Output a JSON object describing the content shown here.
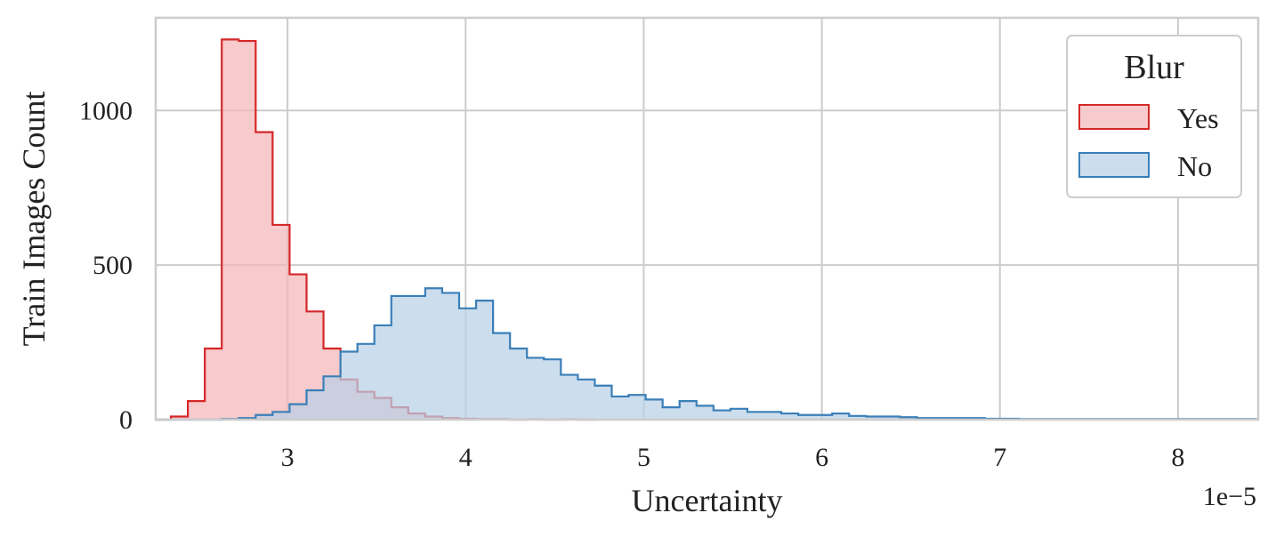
{
  "chart_data": {
    "type": "area",
    "histogram": true,
    "xlabel": "Uncertainty",
    "ylabel": "Train Images Count",
    "x_offset_label": "1e−5",
    "xlim": [
      2.26,
      8.45
    ],
    "ylim": [
      0,
      1300
    ],
    "x_ticks": [
      3,
      4,
      5,
      6,
      7,
      8
    ],
    "y_ticks": [
      0,
      500,
      1000
    ],
    "grid": true,
    "legend": {
      "title": "Blur",
      "position": "top-right",
      "entries": [
        "Yes",
        "No"
      ]
    },
    "bin_start": 2.25,
    "bin_width": 0.0952,
    "series": [
      {
        "name": "Yes",
        "edge_color": "#d62728",
        "fill_color": "#f4b6b8",
        "values": [
          0,
          10,
          60,
          230,
          1230,
          1225,
          930,
          630,
          470,
          350,
          230,
          130,
          90,
          70,
          40,
          20,
          10,
          5,
          3,
          2,
          2,
          0,
          1,
          0,
          1,
          0
        ]
      },
      {
        "name": "No",
        "edge_color": "#3a7fb8",
        "fill_color": "#b9d0e6",
        "values": [
          0,
          0,
          0,
          0,
          2,
          5,
          15,
          25,
          50,
          95,
          140,
          220,
          245,
          305,
          400,
          400,
          425,
          410,
          360,
          385,
          280,
          230,
          200,
          195,
          145,
          130,
          110,
          75,
          80,
          65,
          40,
          60,
          45,
          30,
          35,
          25,
          25,
          20,
          15,
          15,
          20,
          12,
          10,
          10,
          8,
          5,
          5,
          5,
          5,
          3,
          3,
          2,
          2,
          2,
          2,
          2,
          2,
          2,
          2,
          2,
          2,
          2,
          2,
          2,
          2
        ]
      }
    ]
  }
}
